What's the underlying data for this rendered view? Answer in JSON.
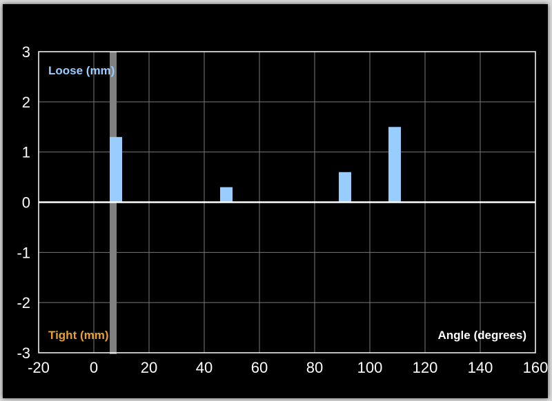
{
  "chart_data": {
    "type": "bar",
    "x": [
      8,
      48,
      91,
      109
    ],
    "values": [
      1.3,
      0.3,
      0.6,
      1.5
    ],
    "xlim": [
      -20,
      160
    ],
    "ylim": [
      -3,
      3
    ],
    "x_ticks": [
      -20,
      0,
      20,
      40,
      60,
      80,
      100,
      120,
      140,
      160
    ],
    "y_ticks": [
      -3,
      -2,
      -1,
      0,
      1,
      2,
      3
    ],
    "xlabel": "Angle (degrees)",
    "positive_label": "Loose (mm)",
    "negative_label": "Tight (mm)",
    "reference_line_x": 7,
    "grid": true,
    "colors": {
      "background": "#000000",
      "bar": "#99ccff",
      "grid": "#7a7a7a",
      "axis": "#ffffff",
      "reference_band": "#808080",
      "positive_label": "#99ccff",
      "negative_label": "#e8a030",
      "xlabel": "#ffffff"
    }
  }
}
